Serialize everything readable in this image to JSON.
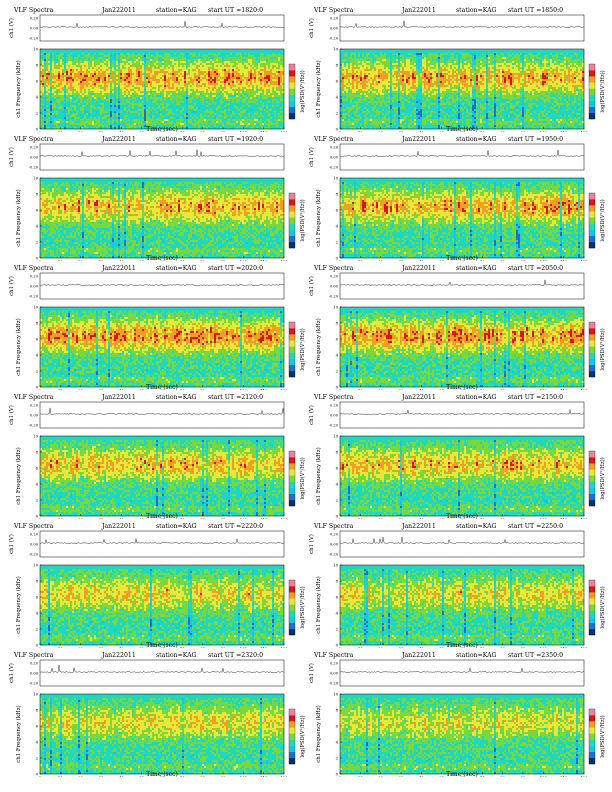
{
  "chart_data": {
    "type": "heatmap",
    "figure_kind": "VLF spectrogram grid, 6 rows x 2 columns",
    "colormap": [
      "#08306b",
      "#1f6fd1",
      "#18c8e0",
      "#20d8c0",
      "#7ad83a",
      "#e8e83a",
      "#f0a020",
      "#d81818",
      "#f080a0"
    ],
    "shared": {
      "label": "VLF Spectra",
      "date": "Jan222011",
      "station": "station=KAG",
      "ch_ylabel": "ch1 (V)",
      "ch_yticks": [
        "0.20",
        "0.00",
        "-0.20"
      ],
      "freq_ylabel": "ch1\nFrequency (kHz)",
      "freq_yticks": [
        "0",
        "2",
        "4",
        "6",
        "8",
        "10"
      ],
      "freq_ylim": [
        0,
        10
      ],
      "xlabel": "Time (sec)",
      "xticks": [
        "0",
        "10",
        "20",
        "30",
        "40",
        "50",
        "60",
        "70",
        "80",
        "90",
        "100",
        "110",
        "120"
      ],
      "xlim": [
        0,
        120
      ],
      "colorbar_label": "log(PSD(V²/Hz))"
    },
    "panels": [
      {
        "title_ut": "start UT =1820:0",
        "start_ut": "1820:0",
        "activity": 0.75
      },
      {
        "title_ut": "start UT =1850:0",
        "start_ut": "1850:0",
        "activity": 0.7
      },
      {
        "title_ut": "start UT =1920:0",
        "start_ut": "1920:0",
        "activity": 0.65
      },
      {
        "title_ut": "start UT =1950:0",
        "start_ut": "1950:0",
        "activity": 0.7
      },
      {
        "title_ut": "start UT =2020:0",
        "start_ut": "2020:0",
        "activity": 0.8
      },
      {
        "title_ut": "start UT =2050:0",
        "start_ut": "2050:0",
        "activity": 0.8
      },
      {
        "title_ut": "start UT =2120:0",
        "start_ut": "2120:0",
        "activity": 0.6
      },
      {
        "title_ut": "start UT =2150:0",
        "start_ut": "2150:0",
        "activity": 0.6
      },
      {
        "title_ut": "start UT =2220:0",
        "start_ut": "2220:0",
        "activity": 0.45
      },
      {
        "title_ut": "start UT =2250:0",
        "start_ut": "2250:0",
        "activity": 0.4
      },
      {
        "title_ut": "start UT =2320:0",
        "start_ut": "2320:0",
        "activity": 0.4
      },
      {
        "title_ut": "start UT =2350:0",
        "start_ut": "2350:0",
        "activity": 0.35
      }
    ]
  }
}
